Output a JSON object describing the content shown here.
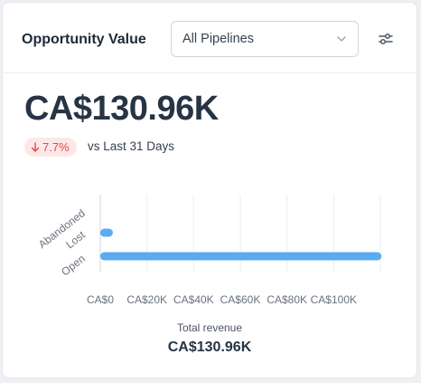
{
  "header": {
    "title": "Opportunity Value",
    "pipeline_select": {
      "value": "All Pipelines"
    },
    "filter_icon": "sliders-icon"
  },
  "summary": {
    "value": "CA$130.96K",
    "trend": {
      "direction": "down",
      "text": "7.7%",
      "color": "#e04848"
    },
    "comparison": "vs Last 31 Days"
  },
  "colors": {
    "bar": "#5aabf0",
    "accent_red": "#e04848"
  },
  "chart_data": {
    "type": "bar",
    "orientation": "horizontal",
    "categories": [
      "Abandoned",
      "Lost",
      "Open"
    ],
    "values": [
      0,
      5400,
      120500
    ],
    "xticks": [
      "CA$0",
      "CA$20K",
      "CA$40K",
      "CA$60K",
      "CA$80K",
      "CA$100K"
    ],
    "xlim": [
      0,
      120000
    ],
    "grid": true,
    "xlabel": "Total revenue",
    "total": "CA$130.96K"
  }
}
